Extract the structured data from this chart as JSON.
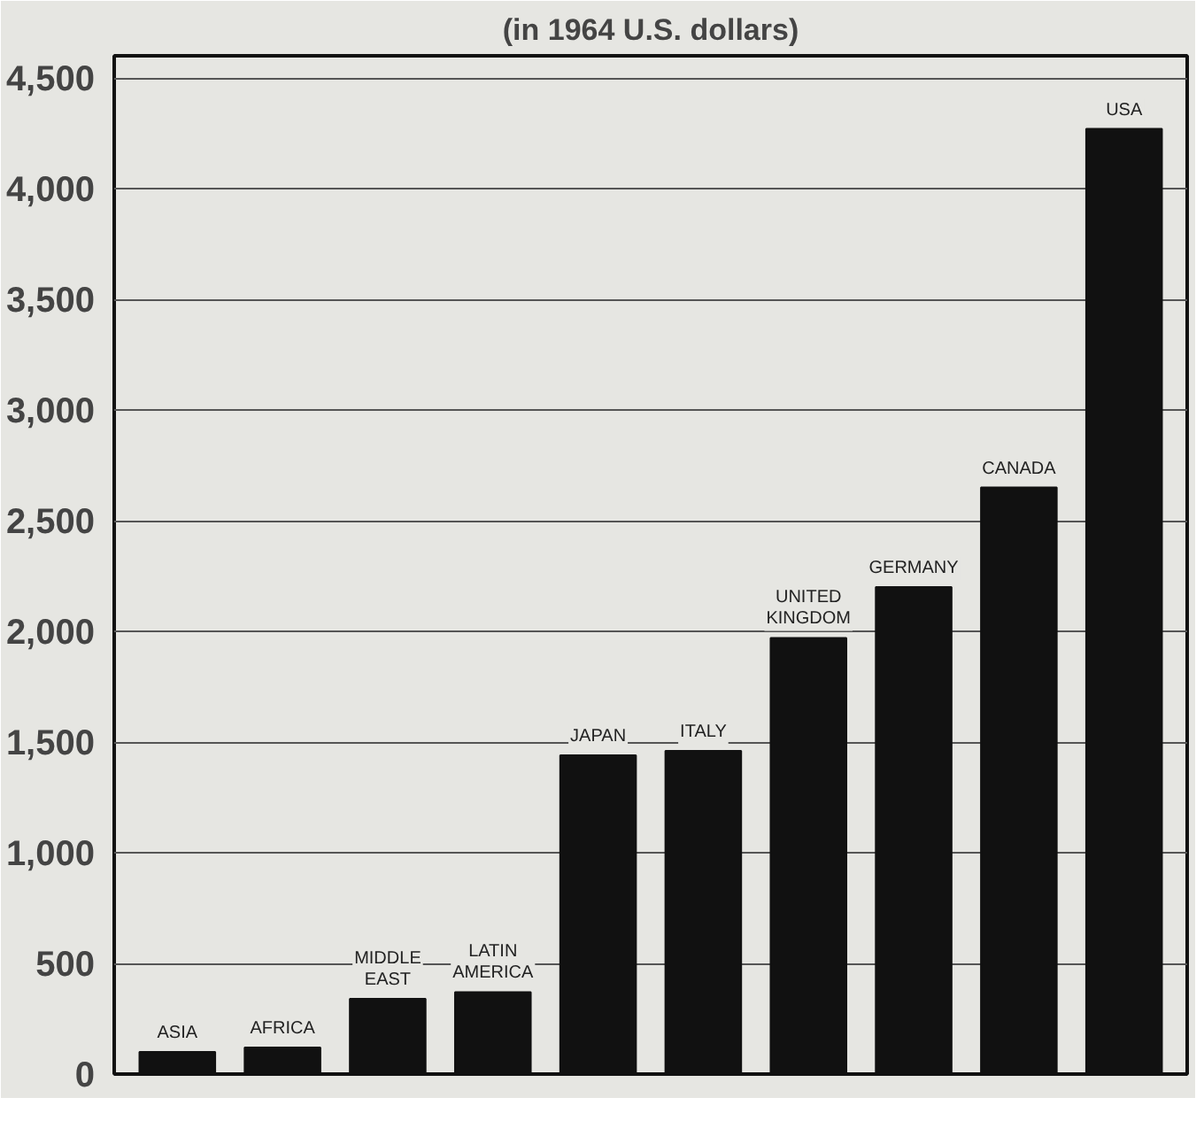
{
  "chart_data": {
    "type": "bar",
    "title": "(in 1964 U.S. dollars)",
    "categories": [
      "ASIA",
      "AFRICA",
      "MIDDLE EAST",
      "LATIN AMERICA",
      "JAPAN",
      "ITALY",
      "UNITED KINGDOM",
      "GERMANY",
      "CANADA",
      "USA"
    ],
    "values": [
      100,
      120,
      340,
      370,
      1440,
      1460,
      1970,
      2200,
      2650,
      4270
    ],
    "color": "#111111",
    "ylim": [
      0,
      4600
    ],
    "yticks": [
      0,
      500,
      {
        "value": 1000,
        "label": "1,000"
      },
      {
        "value": 1500,
        "label": "1,500"
      },
      {
        "value": 2000,
        "label": "2,000"
      },
      {
        "value": 2500,
        "label": "2,500"
      },
      {
        "value": 3000,
        "label": "3,000"
      },
      {
        "value": 3500,
        "label": "3,500"
      },
      {
        "value": 4000,
        "label": "4,000"
      },
      {
        "value": 4500,
        "label": "4,500"
      }
    ],
    "grid": "y"
  }
}
